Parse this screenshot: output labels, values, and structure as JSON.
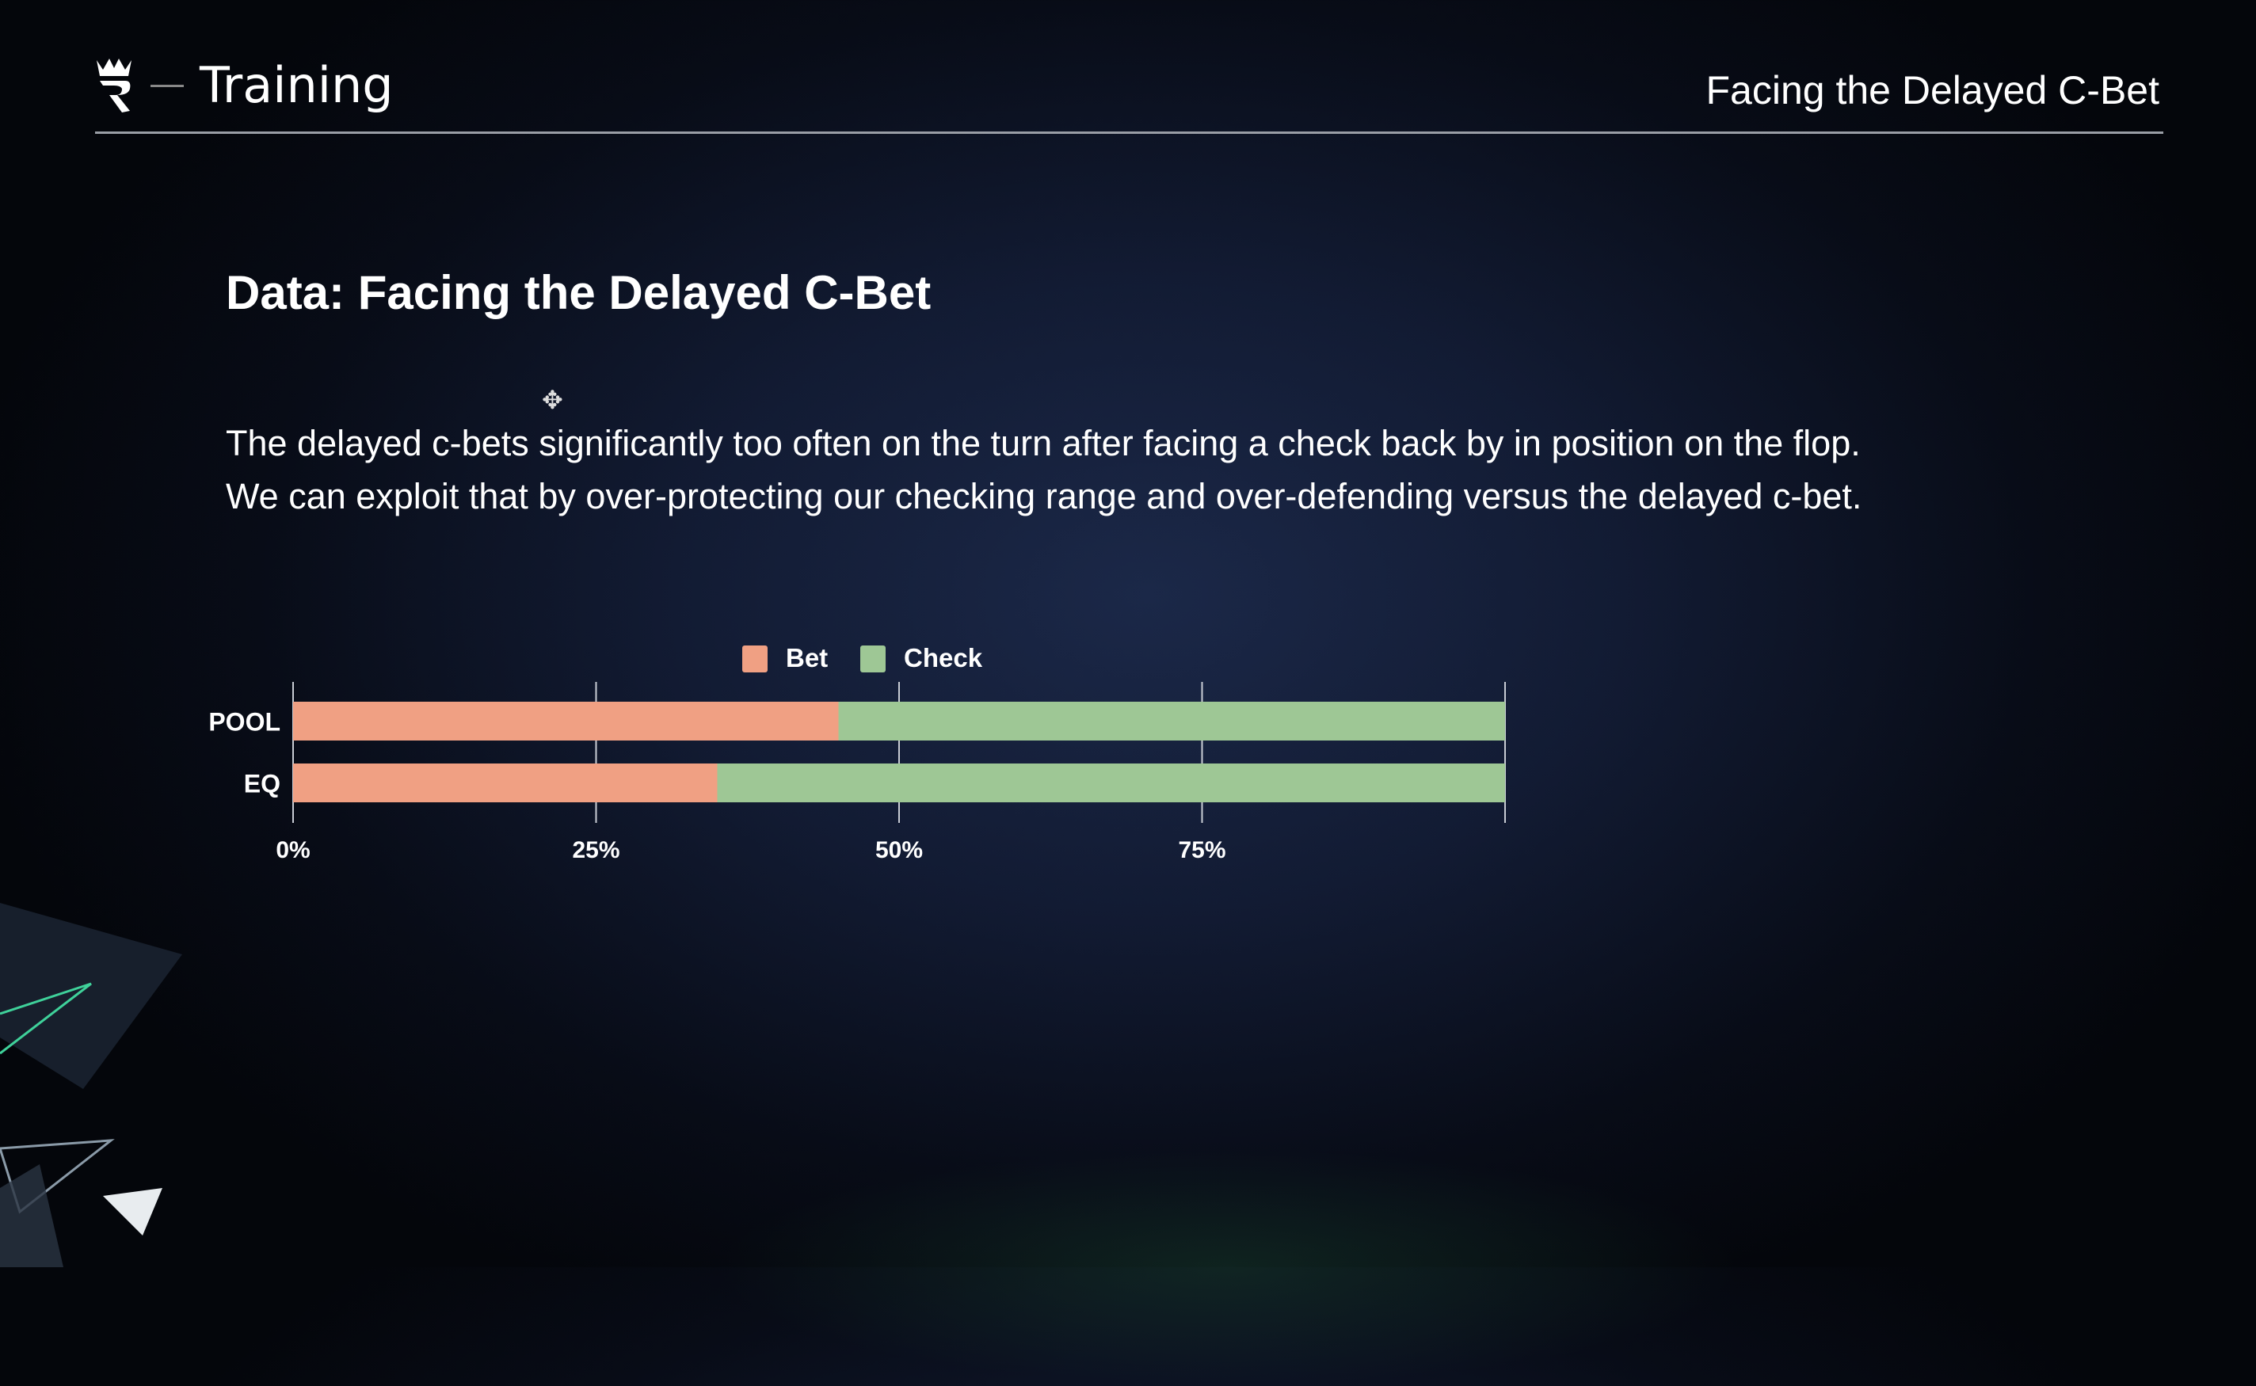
{
  "header": {
    "brand": "Training",
    "section_title": "Facing the Delayed C-Bet",
    "logo_icon": "crown-r-logo"
  },
  "slide": {
    "title": "Data: Facing the Delayed C-Bet",
    "paragraph": [
      "The delayed c-bets significantly too often on the turn after facing a check back by in position on the flop.",
      "We can exploit that by over-protecting our checking range and over-defending versus the delayed c-bet."
    ]
  },
  "chart_data": {
    "type": "bar",
    "orientation": "horizontal",
    "stacked": true,
    "categories": [
      "POOL",
      "EQ"
    ],
    "series": [
      {
        "name": "Bet",
        "color": "#f0a083",
        "values": [
          45,
          35
        ]
      },
      {
        "name": "Check",
        "color": "#9ec795",
        "values": [
          55,
          65
        ]
      }
    ],
    "xlim": [
      0,
      100
    ],
    "xticks": [
      "0%",
      "25%",
      "50%",
      "75%"
    ],
    "grid": true,
    "legend": "top"
  }
}
